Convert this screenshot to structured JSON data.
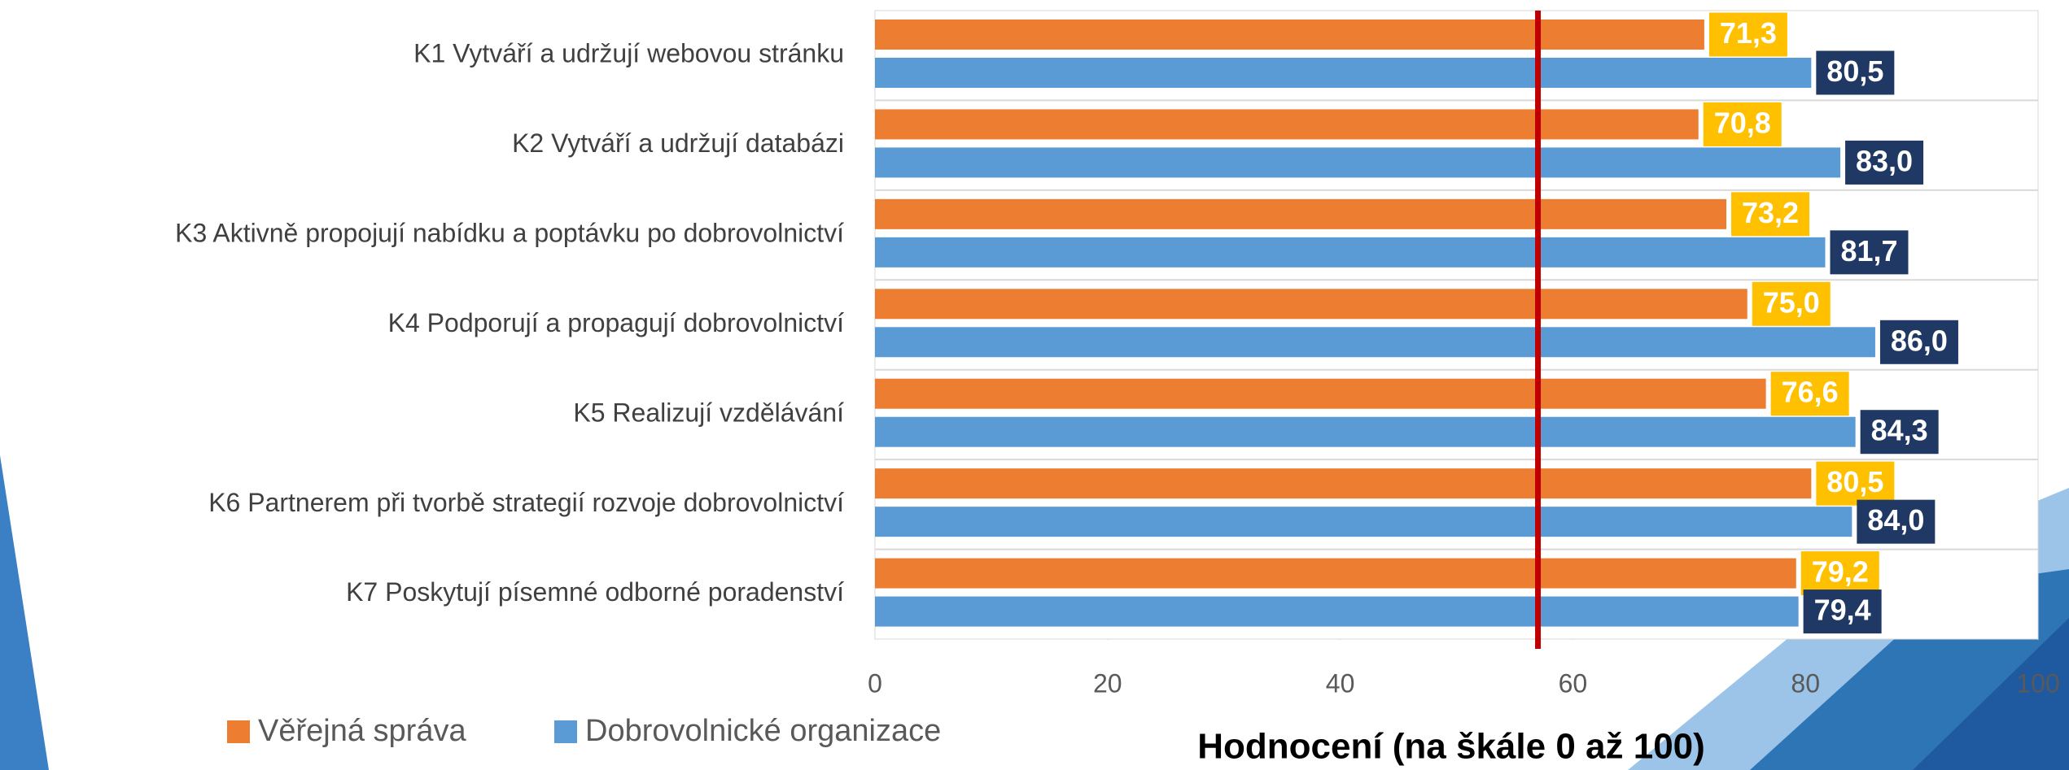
{
  "chart_data": {
    "type": "bar",
    "orientation": "horizontal",
    "x_label": "Hodnocení (na škále 0 až 100)",
    "categories": [
      "K1 Vytváří a udržují webovou stránku",
      "K2 Vytváří a udržují databázi",
      "K3 Aktivně propojují nabídku a poptávku po dobrovolnictví",
      "K4 Podporují a propagují dobrovolnictví",
      "K5 Realizují vzdělávání",
      "K6 Partnerem při tvorbě strategií rozvoje dobrovolnictví",
      "K7 Poskytují písemné odborné poradenství"
    ],
    "series": [
      {
        "name": "Věřejná správa",
        "color": "#ed7d31",
        "label_color": "#ffc000",
        "values": [
          71.3,
          70.8,
          73.2,
          75.0,
          76.6,
          80.5,
          79.2
        ],
        "value_labels": [
          "71,3",
          "70,8",
          "73,2",
          "75,0",
          "76,6",
          "80,5",
          "79,2"
        ]
      },
      {
        "name": "Dobrovolnické organizace",
        "color": "#5b9bd5",
        "label_color": "#1f3864",
        "values": [
          80.5,
          83.0,
          81.7,
          86.0,
          84.3,
          84.0,
          79.4
        ],
        "value_labels": [
          "80,5",
          "83,0",
          "81,7",
          "86,0",
          "84,3",
          "84,0",
          "79,4"
        ]
      }
    ],
    "xlim": [
      0,
      100
    ],
    "xticks": [
      0,
      20,
      40,
      60,
      80,
      100
    ],
    "reference_line": {
      "value": 57,
      "color": "#c00000"
    },
    "legend": "bottom-left"
  }
}
